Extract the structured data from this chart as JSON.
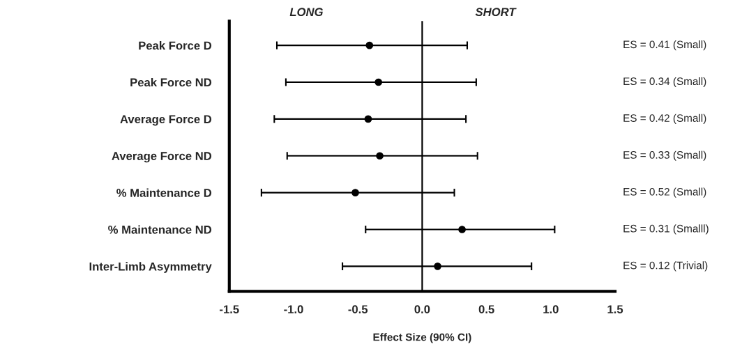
{
  "chart_data": {
    "type": "scatter",
    "orientation": "horizontal",
    "xlabel": "Effect Size (90% CI)",
    "categories": [
      "Peak Force D",
      "Peak Force ND",
      "Average Force D",
      "Average Force ND",
      "% Maintenance D",
      "% Maintenance ND",
      "Inter-Limb Asymmetry"
    ],
    "values": [
      -0.41,
      -0.34,
      -0.42,
      -0.33,
      -0.52,
      0.31,
      0.12
    ],
    "errors": [
      [
        -1.13,
        0.35
      ],
      [
        -1.06,
        0.42
      ],
      [
        -1.15,
        0.34
      ],
      [
        -1.05,
        0.43
      ],
      [
        -1.25,
        0.25
      ],
      [
        -0.44,
        1.03
      ],
      [
        -0.62,
        0.85
      ]
    ],
    "color": "#000000",
    "marker": "circle",
    "xlim": [
      -1.5,
      1.5
    ],
    "xticks": [
      {
        "value": -1.5,
        "label": "-1.5"
      },
      {
        "value": -1.0,
        "label": "-1.0"
      },
      {
        "value": -0.5,
        "label": "-0.5"
      },
      {
        "value": 0.0,
        "label": "0.0"
      },
      {
        "value": 0.5,
        "label": "0.5"
      },
      {
        "value": 1.0,
        "label": "1.0"
      },
      {
        "value": 1.5,
        "label": "1.5"
      }
    ],
    "ref_lines": [
      {
        "axis": "x",
        "value": 0,
        "color": "#000000"
      }
    ],
    "annotations": [
      "LONG",
      "SHORT",
      "ES = 0.41 (Small)",
      "ES = 0.34 (Small)",
      "ES = 0.42 (Small)",
      "ES = 0.33 (Small)",
      "ES = 0.52 (Small)",
      "ES = 0.31 (Smalll)",
      "ES = 0.12 (Trivial)"
    ],
    "grid": false,
    "legend": false
  }
}
